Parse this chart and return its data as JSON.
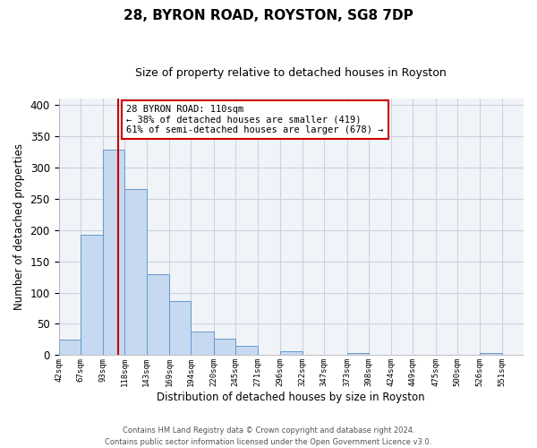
{
  "title": "28, BYRON ROAD, ROYSTON, SG8 7DP",
  "subtitle": "Size of property relative to detached houses in Royston",
  "xlabel": "Distribution of detached houses by size in Royston",
  "ylabel": "Number of detached properties",
  "bin_labels": [
    "42sqm",
    "67sqm",
    "93sqm",
    "118sqm",
    "143sqm",
    "169sqm",
    "194sqm",
    "220sqm",
    "245sqm",
    "271sqm",
    "296sqm",
    "322sqm",
    "347sqm",
    "373sqm",
    "398sqm",
    "424sqm",
    "449sqm",
    "475sqm",
    "500sqm",
    "526sqm",
    "551sqm"
  ],
  "bin_edges": [
    42,
    67,
    93,
    118,
    143,
    169,
    194,
    220,
    245,
    271,
    296,
    322,
    347,
    373,
    398,
    424,
    449,
    475,
    500,
    526,
    551,
    576
  ],
  "bar_heights": [
    25,
    193,
    328,
    265,
    130,
    86,
    38,
    26,
    15,
    0,
    7,
    0,
    0,
    3,
    0,
    0,
    0,
    0,
    0,
    3,
    0
  ],
  "bar_facecolor": "#c6d9f0",
  "bar_edgecolor": "#6699cc",
  "property_line_x": 110,
  "property_line_color": "#cc0000",
  "ylim": [
    0,
    410
  ],
  "yticks": [
    0,
    50,
    100,
    150,
    200,
    250,
    300,
    350,
    400
  ],
  "annotation_line1": "28 BYRON ROAD: 110sqm",
  "annotation_line2": "← 38% of detached houses are smaller (419)",
  "annotation_line3": "61% of semi-detached houses are larger (678) →",
  "annotation_box_color": "#cc0000",
  "footer_line1": "Contains HM Land Registry data © Crown copyright and database right 2024.",
  "footer_line2": "Contains public sector information licensed under the Open Government Licence v3.0.",
  "axes_bg_color": "#f0f4f8",
  "grid_color": "#c8d4e0"
}
